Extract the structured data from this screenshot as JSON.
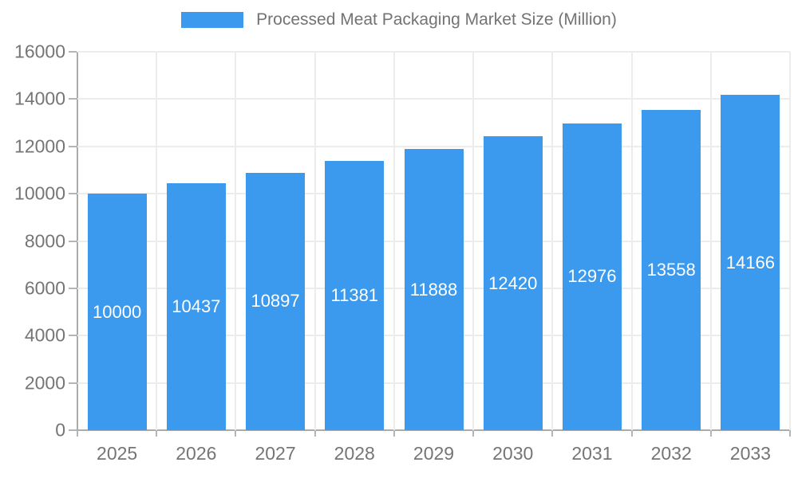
{
  "legend": {
    "label": "Processed Meat Packaging Market Size (Million)"
  },
  "chart_data": {
    "type": "bar",
    "title": "Processed Meat Packaging Market Size (Million)",
    "series_name": "Processed Meat Packaging Market Size (Million)",
    "categories": [
      "2025",
      "2026",
      "2027",
      "2028",
      "2029",
      "2030",
      "2031",
      "2032",
      "2033"
    ],
    "values": [
      10000,
      10437,
      10897,
      11381,
      11888,
      12420,
      12976,
      13558,
      14166
    ],
    "xlabel": "",
    "ylabel": "",
    "ylim": [
      0,
      16000
    ],
    "yticks": [
      0,
      2000,
      4000,
      6000,
      8000,
      10000,
      12000,
      14000,
      16000
    ],
    "grid": true,
    "legend_position": "top",
    "value_labels_shown": true,
    "colors": {
      "bar": "#3b99ee",
      "value_label": "#ffffff",
      "tick_label": "#757575",
      "legend_text": "#737373",
      "gridline": "#ececec",
      "axis_line": "#ababab"
    }
  }
}
